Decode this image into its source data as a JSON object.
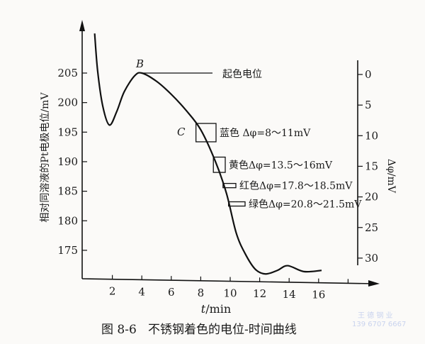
{
  "chart_data": {
    "type": "line",
    "caption": "图 8-6   不锈钢着色的电位-时间曲线",
    "xlabel_var": "t",
    "xlabel_unit": "/min",
    "ylabel": "相对同溶液的Pt电极电位/mV",
    "y2label": "Δφ/mV",
    "x_ticks": [
      2,
      4,
      6,
      8,
      10,
      12,
      14,
      16
    ],
    "y_ticks": [
      175,
      180,
      185,
      190,
      195,
      200,
      205
    ],
    "y2_ticks": [
      0,
      5,
      10,
      15,
      20,
      25,
      30
    ],
    "xlim": [
      0,
      18
    ],
    "ylim": [
      170,
      212
    ],
    "y2_reference": 205,
    "series": [
      {
        "x": [
          0.8,
          1.0,
          1.35,
          1.8,
          2.3,
          2.8,
          3.5,
          4.0,
          5.0,
          6.0,
          7.0,
          8.0,
          9.0,
          9.75,
          10.4,
          11.0,
          11.7,
          12.4,
          13.2,
          13.9,
          15.0,
          16.2
        ],
        "y": [
          211.7,
          205.4,
          199.4,
          196.2,
          198.5,
          201.8,
          204.5,
          205.0,
          203.6,
          201.4,
          198.7,
          195.4,
          190.0,
          184.6,
          178.0,
          174.5,
          171.8,
          171.0,
          171.6,
          172.4,
          171.4,
          171.6
        ]
      }
    ],
    "annotations": {
      "point_B": {
        "label": "B",
        "x": 4.0,
        "y": 205
      },
      "point_C": {
        "label": "C"
      },
      "start_label": "起色电位"
    },
    "color_ranges": [
      {
        "label": "蓝色 Δφ=8～11mV",
        "from": 8,
        "to": 11
      },
      {
        "label": "黄色Δφ=13.5～16mV",
        "from": 13.5,
        "to": 16
      },
      {
        "label": "红色Δφ=17.8～18.5mV",
        "from": 17.8,
        "to": 18.5
      },
      {
        "label": "绿色Δφ=20.8～21.5mV",
        "from": 20.8,
        "to": 21.5
      }
    ]
  },
  "watermark": {
    "line1": "王 德 钢 业",
    "line2": "139 6707 6667"
  }
}
